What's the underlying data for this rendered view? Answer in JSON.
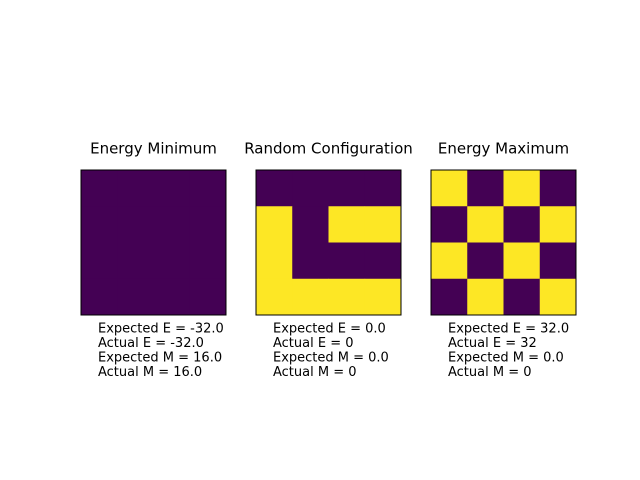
{
  "chart_data": [
    {
      "type": "heatmap",
      "title": "Energy Minimum",
      "values": [
        [
          1,
          1,
          1,
          1
        ],
        [
          1,
          1,
          1,
          1
        ],
        [
          1,
          1,
          1,
          1
        ],
        [
          1,
          1,
          1,
          1
        ]
      ],
      "colors": [
        "#440154",
        "#fde725"
      ],
      "annotations": [
        "Expected E = -32.0",
        "Actual E = -32.0",
        "Expected M = 16.0",
        "Actual M = 16.0"
      ]
    },
    {
      "type": "heatmap",
      "title": "Random Configuration",
      "values": [
        [
          -1,
          -1,
          -1,
          -1
        ],
        [
          1,
          -1,
          1,
          1
        ],
        [
          1,
          -1,
          -1,
          -1
        ],
        [
          1,
          1,
          1,
          1
        ]
      ],
      "colors": [
        "#440154",
        "#fde725"
      ],
      "annotations": [
        "Expected E = 0.0",
        "Actual E = 0",
        "Expected M = 0.0",
        "Actual M = 0"
      ]
    },
    {
      "type": "heatmap",
      "title": "Energy Maximum",
      "values": [
        [
          1,
          -1,
          1,
          -1
        ],
        [
          -1,
          1,
          -1,
          1
        ],
        [
          1,
          -1,
          1,
          -1
        ],
        [
          -1,
          1,
          -1,
          1
        ]
      ],
      "colors": [
        "#440154",
        "#fde725"
      ],
      "annotations": [
        "Expected E = 32.0",
        "Actual E = 32",
        "Expected M = 0.0",
        "Actual M = 0"
      ]
    }
  ]
}
